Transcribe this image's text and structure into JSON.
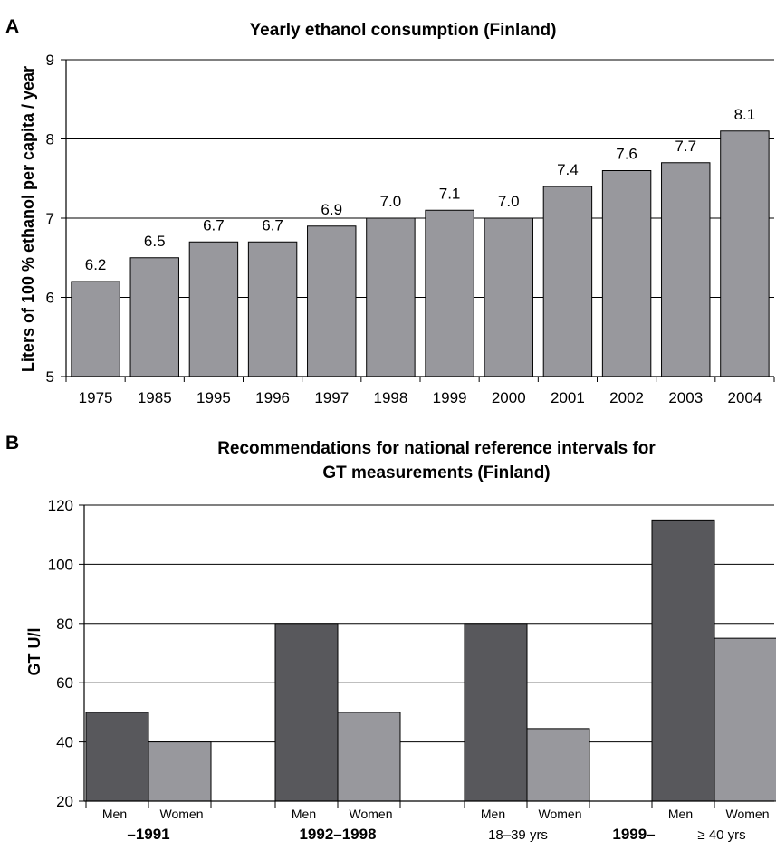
{
  "figure": {
    "panel_a_letter": "A",
    "panel_b_letter": "B"
  },
  "chart_data": [
    {
      "type": "bar",
      "title": "Yearly ethanol consumption (Finland)",
      "xlabel": "",
      "ylabel": "Liters of 100 % ethanol per capita / year",
      "categories": [
        "1975",
        "1985",
        "1995",
        "1996",
        "1997",
        "1998",
        "1999",
        "2000",
        "2001",
        "2002",
        "2003",
        "2004"
      ],
      "values": [
        6.2,
        6.5,
        6.7,
        6.7,
        6.9,
        7.0,
        7.1,
        7.0,
        7.4,
        7.6,
        7.7,
        8.1
      ],
      "data_labels": [
        "6.2",
        "6.5",
        "6.7",
        "6.7",
        "6.9",
        "7.0",
        "7.1",
        "7.0",
        "7.4",
        "7.6",
        "7.7",
        "8.1"
      ],
      "ylim": [
        5,
        9
      ],
      "yticks": [
        5,
        6,
        7,
        8,
        9
      ],
      "grid": true,
      "colors": {
        "bar": "#98989d"
      }
    },
    {
      "type": "bar",
      "title": "Recommendations for national reference intervals for GT measurements (Finland)",
      "title_lines": [
        "Recommendations for national reference intervals for",
        "GT measurements (Finland)"
      ],
      "xlabel": "",
      "ylabel": "GT U/l",
      "ylim": [
        20,
        120
      ],
      "yticks": [
        20,
        40,
        60,
        80,
        100,
        120
      ],
      "grid": true,
      "groups": [
        {
          "bars": [
            {
              "label": "Men",
              "value": 50,
              "sex": "men"
            },
            {
              "label": "Women",
              "value": 40,
              "sex": "women"
            }
          ],
          "labels": [
            {
              "text": "–1991",
              "style": "grp"
            }
          ]
        },
        {
          "bars": [
            {
              "label": "Men",
              "value": 80,
              "sex": "men"
            },
            {
              "label": "Women",
              "value": 50,
              "sex": "women"
            }
          ],
          "labels": [
            {
              "text": "1992–1998",
              "style": "grp"
            }
          ]
        },
        {
          "bars": [
            {
              "label": "Men",
              "value": 80,
              "sex": "men"
            },
            {
              "label": "Women",
              "value": 44.5,
              "sex": "women"
            }
          ],
          "labels": [
            {
              "text": "18–39 yrs",
              "style": "sub"
            }
          ]
        },
        {
          "bars": [
            {
              "label": "Men",
              "value": 115,
              "sex": "men"
            },
            {
              "label": "Women",
              "value": 75,
              "sex": "women"
            }
          ],
          "labels": [
            {
              "text": "≥ 40 yrs",
              "style": "sub"
            }
          ]
        }
      ],
      "period_label": "1999–",
      "colors": {
        "men": "#58585c",
        "women": "#98989d"
      }
    }
  ]
}
